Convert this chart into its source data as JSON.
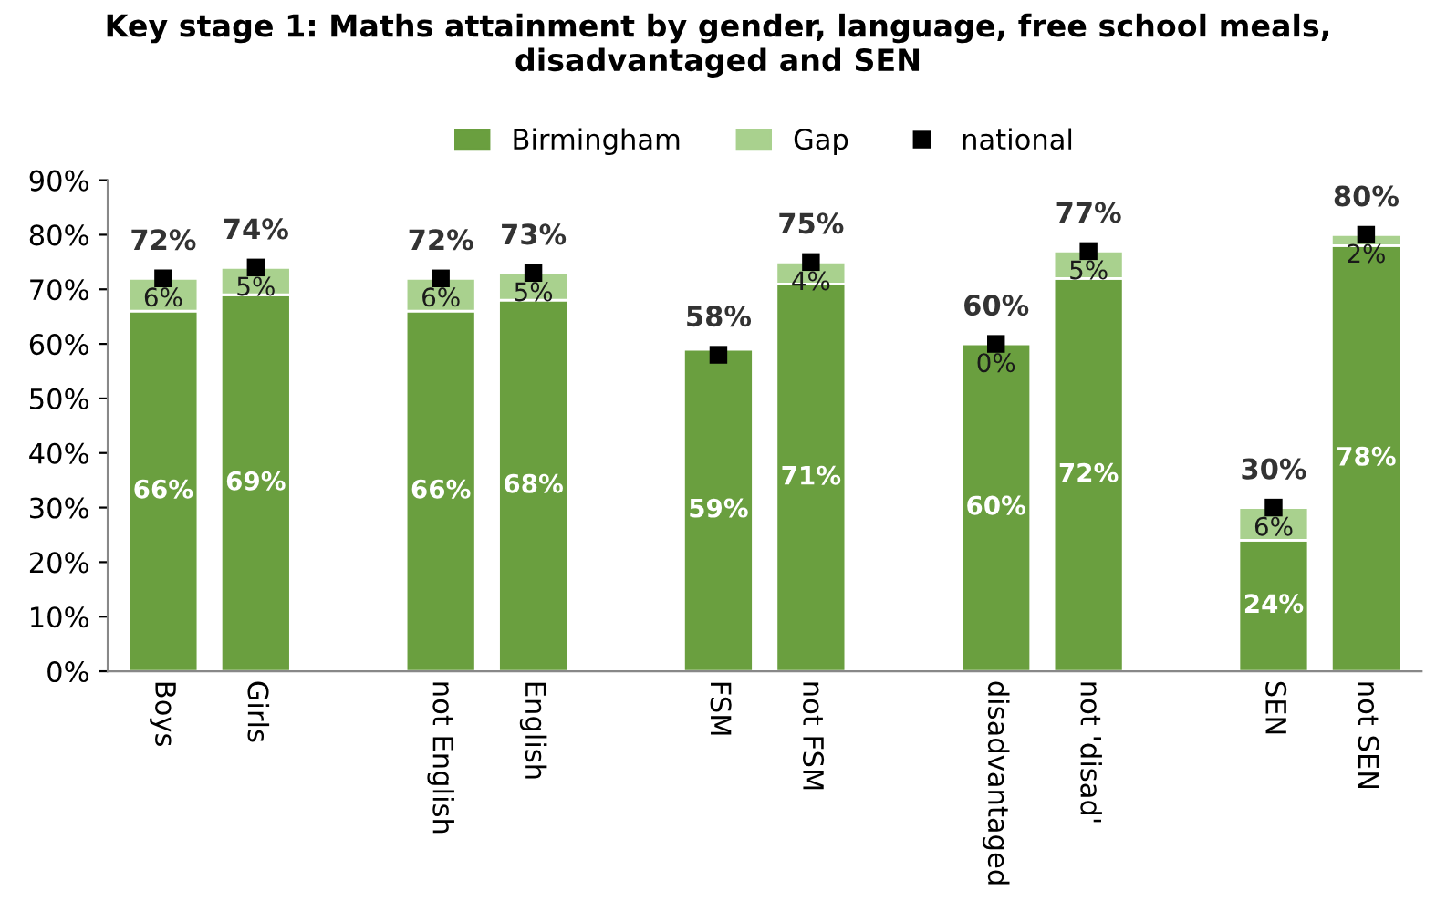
{
  "chart_data": {
    "type": "bar",
    "title": "Key stage 1: Maths attainment by gender, language, free school meals,\ndisadvantaged and SEN",
    "categories": [
      "Boys",
      "Girls",
      null,
      "not English",
      "English",
      null,
      "FSM",
      "not FSM",
      null,
      "disadvantaged",
      "not 'disad'",
      null,
      "SEN",
      "not SEN"
    ],
    "stacked": true,
    "ylim": [
      0,
      90
    ],
    "yticks": [
      {
        "value": 0,
        "label": "0%"
      },
      {
        "value": 10,
        "label": "10%"
      },
      {
        "value": 20,
        "label": "20%"
      },
      {
        "value": 30,
        "label": "30%"
      },
      {
        "value": 40,
        "label": "40%"
      },
      {
        "value": 50,
        "label": "50%"
      },
      {
        "value": 60,
        "label": "60%"
      },
      {
        "value": 70,
        "label": "70%"
      },
      {
        "value": 80,
        "label": "80%"
      },
      {
        "value": 90,
        "label": "90%"
      }
    ],
    "grid": false,
    "legend": "top",
    "series": [
      {
        "name": "Birmingham",
        "color": "#6a9f3f",
        "values": [
          66,
          69,
          null,
          66,
          68,
          null,
          59,
          71,
          null,
          60,
          72,
          null,
          24,
          78
        ],
        "value_labels": [
          "66%",
          "69%",
          null,
          "66%",
          "68%",
          null,
          "59%",
          "71%",
          null,
          "60%",
          "72%",
          null,
          "24%",
          "78%"
        ]
      },
      {
        "name": "Gap",
        "color": "#a9d18e",
        "values": [
          6,
          5,
          null,
          6,
          5,
          null,
          null,
          4,
          null,
          0,
          5,
          null,
          6,
          2
        ],
        "value_labels": [
          "6%",
          "5%",
          null,
          "6%",
          "5%",
          null,
          null,
          "4%",
          null,
          "0%",
          "5%",
          null,
          "6%",
          "2%"
        ]
      },
      {
        "name": "national",
        "type": "scatter",
        "marker": "square",
        "color": "#000000",
        "values": [
          72,
          74,
          null,
          72,
          73,
          null,
          58,
          75,
          null,
          60,
          77,
          null,
          30,
          80
        ],
        "value_labels": [
          "72%",
          "74%",
          null,
          "72%",
          "73%",
          null,
          "58%",
          "75%",
          null,
          "60%",
          "77%",
          null,
          "30%",
          "80%"
        ]
      }
    ]
  }
}
